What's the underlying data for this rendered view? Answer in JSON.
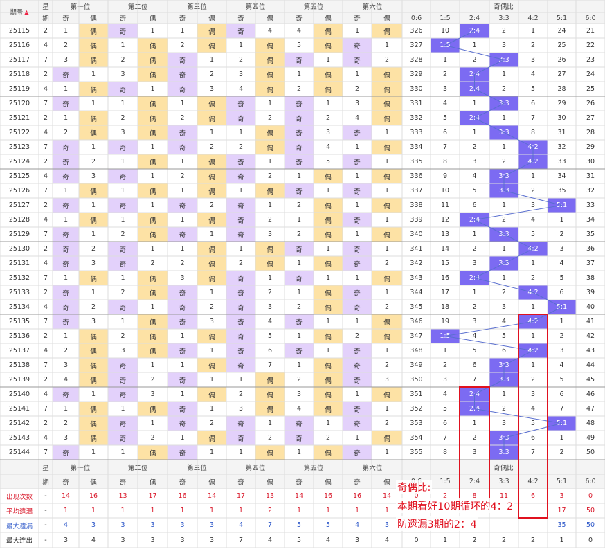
{
  "header": {
    "period": "期号",
    "weekday_top": "星",
    "weekday_bottom": "期",
    "positions": [
      "第一位",
      "第二位",
      "第三位",
      "第四位",
      "第五位",
      "第六位"
    ],
    "odd": "奇",
    "even": "偶",
    "ratio_title": "奇偶比",
    "ratios": [
      "0:6",
      "1:5",
      "2:4",
      "3:3",
      "4:2",
      "5:1",
      "6:0"
    ],
    "footer_dash": "-"
  },
  "rows": [
    {
      "p": "25115",
      "w": "2",
      "pos": [
        [
          "1",
          "偶"
        ],
        [
          "奇",
          "1"
        ],
        [
          "1",
          "偶"
        ],
        [
          "奇",
          "4"
        ],
        [
          "4",
          "偶"
        ],
        [
          "1",
          "偶"
        ]
      ],
      "r": [
        "326",
        "10",
        "2:4",
        "2",
        "1",
        "24",
        "21"
      ]
    },
    {
      "p": "25116",
      "w": "4",
      "pos": [
        [
          "2",
          "偶"
        ],
        [
          "1",
          "偶"
        ],
        [
          "2",
          "偶"
        ],
        [
          "1",
          "偶"
        ],
        [
          "5",
          "偶"
        ],
        [
          "奇",
          "1"
        ]
      ],
      "r": [
        "327",
        "1:5",
        "1",
        "3",
        "2",
        "25",
        "22"
      ]
    },
    {
      "p": "25117",
      "w": "7",
      "pos": [
        [
          "3",
          "偶"
        ],
        [
          "2",
          "偶"
        ],
        [
          "奇",
          "1"
        ],
        [
          "2",
          "偶"
        ],
        [
          "奇",
          "1"
        ],
        [
          "奇",
          "2"
        ]
      ],
      "r": [
        "328",
        "1",
        "2",
        "3:3",
        "3",
        "26",
        "23"
      ]
    },
    {
      "p": "25118",
      "w": "2",
      "pos": [
        [
          "奇",
          "1"
        ],
        [
          "3",
          "偶"
        ],
        [
          "奇",
          "2"
        ],
        [
          "3",
          "偶"
        ],
        [
          "1",
          "偶"
        ],
        [
          "1",
          "偶"
        ]
      ],
      "r": [
        "329",
        "2",
        "2:4",
        "1",
        "4",
        "27",
        "24"
      ]
    },
    {
      "p": "25119",
      "w": "4",
      "pos": [
        [
          "1",
          "偶"
        ],
        [
          "奇",
          "1"
        ],
        [
          "奇",
          "3"
        ],
        [
          "4",
          "偶"
        ],
        [
          "2",
          "偶"
        ],
        [
          "2",
          "偶"
        ]
      ],
      "r": [
        "330",
        "3",
        "2:4",
        "2",
        "5",
        "28",
        "25"
      ]
    },
    {
      "p": "25120",
      "w": "7",
      "pos": [
        [
          "奇",
          "1"
        ],
        [
          "1",
          "偶"
        ],
        [
          "1",
          "偶"
        ],
        [
          "奇",
          "1"
        ],
        [
          "奇",
          "1"
        ],
        [
          "3",
          "偶"
        ]
      ],
      "r": [
        "331",
        "4",
        "1",
        "3:3",
        "6",
        "29",
        "26"
      ]
    },
    {
      "p": "25121",
      "w": "2",
      "pos": [
        [
          "1",
          "偶"
        ],
        [
          "2",
          "偶"
        ],
        [
          "2",
          "偶"
        ],
        [
          "奇",
          "2"
        ],
        [
          "奇",
          "2"
        ],
        [
          "4",
          "偶"
        ]
      ],
      "r": [
        "332",
        "5",
        "2:4",
        "1",
        "7",
        "30",
        "27"
      ]
    },
    {
      "p": "25122",
      "w": "4",
      "pos": [
        [
          "2",
          "偶"
        ],
        [
          "3",
          "偶"
        ],
        [
          "奇",
          "1"
        ],
        [
          "1",
          "偶"
        ],
        [
          "奇",
          "3"
        ],
        [
          "奇",
          "1"
        ]
      ],
      "r": [
        "333",
        "6",
        "1",
        "3:3",
        "8",
        "31",
        "28"
      ]
    },
    {
      "p": "25123",
      "w": "7",
      "pos": [
        [
          "奇",
          "1"
        ],
        [
          "奇",
          "1"
        ],
        [
          "奇",
          "2"
        ],
        [
          "2",
          "偶"
        ],
        [
          "奇",
          "4"
        ],
        [
          "1",
          "偶"
        ]
      ],
      "r": [
        "334",
        "7",
        "2",
        "1",
        "4:2",
        "32",
        "29"
      ]
    },
    {
      "p": "25124",
      "w": "2",
      "pos": [
        [
          "奇",
          "2"
        ],
        [
          "1",
          "偶"
        ],
        [
          "1",
          "偶"
        ],
        [
          "奇",
          "1"
        ],
        [
          "奇",
          "5"
        ],
        [
          "奇",
          "1"
        ]
      ],
      "r": [
        "335",
        "8",
        "3",
        "2",
        "4:2",
        "33",
        "30"
      ]
    },
    {
      "p": "25125",
      "w": "4",
      "pos": [
        [
          "奇",
          "3"
        ],
        [
          "奇",
          "1"
        ],
        [
          "2",
          "偶"
        ],
        [
          "奇",
          "2"
        ],
        [
          "1",
          "偶"
        ],
        [
          "1",
          "偶"
        ]
      ],
      "r": [
        "336",
        "9",
        "4",
        "3:3",
        "1",
        "34",
        "31"
      ]
    },
    {
      "p": "25126",
      "w": "7",
      "pos": [
        [
          "1",
          "偶"
        ],
        [
          "1",
          "偶"
        ],
        [
          "1",
          "偶"
        ],
        [
          "1",
          "偶"
        ],
        [
          "奇",
          "1"
        ],
        [
          "奇",
          "1"
        ]
      ],
      "r": [
        "337",
        "10",
        "5",
        "3:3",
        "2",
        "35",
        "32"
      ]
    },
    {
      "p": "25127",
      "w": "2",
      "pos": [
        [
          "奇",
          "1"
        ],
        [
          "奇",
          "1"
        ],
        [
          "奇",
          "2"
        ],
        [
          "奇",
          "1"
        ],
        [
          "2",
          "偶"
        ],
        [
          "1",
          "偶"
        ]
      ],
      "r": [
        "338",
        "11",
        "6",
        "1",
        "3",
        "5:1",
        "33"
      ]
    },
    {
      "p": "25128",
      "w": "4",
      "pos": [
        [
          "1",
          "偶"
        ],
        [
          "1",
          "偶"
        ],
        [
          "1",
          "偶"
        ],
        [
          "奇",
          "2"
        ],
        [
          "1",
          "偶"
        ],
        [
          "奇",
          "1"
        ]
      ],
      "r": [
        "339",
        "12",
        "2:4",
        "2",
        "4",
        "1",
        "34"
      ]
    },
    {
      "p": "25129",
      "w": "7",
      "pos": [
        [
          "奇",
          "1"
        ],
        [
          "2",
          "偶"
        ],
        [
          "奇",
          "1"
        ],
        [
          "奇",
          "3"
        ],
        [
          "2",
          "偶"
        ],
        [
          "1",
          "偶"
        ]
      ],
      "r": [
        "340",
        "13",
        "1",
        "3:3",
        "5",
        "2",
        "35"
      ]
    },
    {
      "p": "25130",
      "w": "2",
      "pos": [
        [
          "奇",
          "2"
        ],
        [
          "奇",
          "1"
        ],
        [
          "1",
          "偶"
        ],
        [
          "1",
          "偶"
        ],
        [
          "奇",
          "1"
        ],
        [
          "奇",
          "1"
        ]
      ],
      "r": [
        "341",
        "14",
        "2",
        "1",
        "4:2",
        "3",
        "36"
      ]
    },
    {
      "p": "25131",
      "w": "4",
      "pos": [
        [
          "奇",
          "3"
        ],
        [
          "奇",
          "2"
        ],
        [
          "2",
          "偶"
        ],
        [
          "2",
          "偶"
        ],
        [
          "1",
          "偶"
        ],
        [
          "奇",
          "2"
        ]
      ],
      "r": [
        "342",
        "15",
        "3",
        "3:3",
        "1",
        "4",
        "37"
      ]
    },
    {
      "p": "25132",
      "w": "7",
      "pos": [
        [
          "1",
          "偶"
        ],
        [
          "1",
          "偶"
        ],
        [
          "3",
          "偶"
        ],
        [
          "奇",
          "1"
        ],
        [
          "奇",
          "1"
        ],
        [
          "1",
          "偶"
        ]
      ],
      "r": [
        "343",
        "16",
        "2:4",
        "1",
        "2",
        "5",
        "38"
      ]
    },
    {
      "p": "25133",
      "w": "2",
      "pos": [
        [
          "奇",
          "1"
        ],
        [
          "2",
          "偶"
        ],
        [
          "奇",
          "1"
        ],
        [
          "奇",
          "2"
        ],
        [
          "1",
          "偶"
        ],
        [
          "奇",
          "1"
        ]
      ],
      "r": [
        "344",
        "17",
        "1",
        "2",
        "4:2",
        "6",
        "39"
      ]
    },
    {
      "p": "25134",
      "w": "4",
      "pos": [
        [
          "奇",
          "2"
        ],
        [
          "奇",
          "1"
        ],
        [
          "奇",
          "2"
        ],
        [
          "奇",
          "3"
        ],
        [
          "2",
          "偶"
        ],
        [
          "奇",
          "2"
        ]
      ],
      "r": [
        "345",
        "18",
        "2",
        "3",
        "1",
        "5:1",
        "40"
      ]
    },
    {
      "p": "25135",
      "w": "7",
      "pos": [
        [
          "奇",
          "3"
        ],
        [
          "1",
          "偶"
        ],
        [
          "奇",
          "3"
        ],
        [
          "奇",
          "4"
        ],
        [
          "奇",
          "1"
        ],
        [
          "1",
          "偶"
        ]
      ],
      "r": [
        "346",
        "19",
        "3",
        "4",
        "4:2",
        "1",
        "41"
      ]
    },
    {
      "p": "25136",
      "w": "2",
      "pos": [
        [
          "1",
          "偶"
        ],
        [
          "2",
          "偶"
        ],
        [
          "1",
          "偶"
        ],
        [
          "奇",
          "5"
        ],
        [
          "1",
          "偶"
        ],
        [
          "2",
          "偶"
        ]
      ],
      "r": [
        "347",
        "1:5",
        "4",
        "5",
        "1",
        "2",
        "42"
      ]
    },
    {
      "p": "25137",
      "w": "4",
      "pos": [
        [
          "2",
          "偶"
        ],
        [
          "3",
          "偶"
        ],
        [
          "奇",
          "1"
        ],
        [
          "奇",
          "6"
        ],
        [
          "奇",
          "1"
        ],
        [
          "奇",
          "1"
        ]
      ],
      "r": [
        "348",
        "1",
        "5",
        "6",
        "4:2",
        "3",
        "43"
      ]
    },
    {
      "p": "25138",
      "w": "7",
      "pos": [
        [
          "3",
          "偶"
        ],
        [
          "奇",
          "1"
        ],
        [
          "1",
          "偶"
        ],
        [
          "奇",
          "7"
        ],
        [
          "1",
          "偶"
        ],
        [
          "奇",
          "2"
        ]
      ],
      "r": [
        "349",
        "2",
        "6",
        "3:3",
        "1",
        "4",
        "44"
      ]
    },
    {
      "p": "25139",
      "w": "2",
      "pos": [
        [
          "4",
          "偶"
        ],
        [
          "奇",
          "2"
        ],
        [
          "奇",
          "1"
        ],
        [
          "1",
          "偶"
        ],
        [
          "2",
          "偶"
        ],
        [
          "奇",
          "3"
        ]
      ],
      "r": [
        "350",
        "3",
        "7",
        "3:3",
        "2",
        "5",
        "45"
      ]
    },
    {
      "p": "25140",
      "w": "4",
      "pos": [
        [
          "奇",
          "1"
        ],
        [
          "奇",
          "3"
        ],
        [
          "1",
          "偶"
        ],
        [
          "2",
          "偶"
        ],
        [
          "3",
          "偶"
        ],
        [
          "1",
          "偶"
        ]
      ],
      "r": [
        "351",
        "4",
        "2:4",
        "1",
        "3",
        "6",
        "46"
      ]
    },
    {
      "p": "25141",
      "w": "7",
      "pos": [
        [
          "1",
          "偶"
        ],
        [
          "1",
          "偶"
        ],
        [
          "奇",
          "1"
        ],
        [
          "3",
          "偶"
        ],
        [
          "4",
          "偶"
        ],
        [
          "奇",
          "1"
        ]
      ],
      "r": [
        "352",
        "5",
        "2:4",
        "2",
        "4",
        "7",
        "47"
      ]
    },
    {
      "p": "25142",
      "w": "2",
      "pos": [
        [
          "2",
          "偶"
        ],
        [
          "奇",
          "1"
        ],
        [
          "奇",
          "2"
        ],
        [
          "奇",
          "1"
        ],
        [
          "奇",
          "1"
        ],
        [
          "奇",
          "2"
        ]
      ],
      "r": [
        "353",
        "6",
        "1",
        "3",
        "5",
        "5:1",
        "48"
      ]
    },
    {
      "p": "25143",
      "w": "4",
      "pos": [
        [
          "3",
          "偶"
        ],
        [
          "奇",
          "2"
        ],
        [
          "1",
          "偶"
        ],
        [
          "奇",
          "2"
        ],
        [
          "奇",
          "2"
        ],
        [
          "1",
          "偶"
        ]
      ],
      "r": [
        "354",
        "7",
        "2",
        "3:3",
        "6",
        "1",
        "49"
      ]
    },
    {
      "p": "25144",
      "w": "7",
      "pos": [
        [
          "奇",
          "1"
        ],
        [
          "1",
          "偶"
        ],
        [
          "奇",
          "1"
        ],
        [
          "1",
          "偶"
        ],
        [
          "1",
          "偶"
        ],
        [
          "奇",
          "1"
        ]
      ],
      "r": [
        "355",
        "8",
        "3",
        "3:3",
        "7",
        "2",
        "50"
      ]
    }
  ],
  "stats": [
    {
      "label": "出现次数",
      "color": "#d9182a",
      "w": "-",
      "vals": [
        "14",
        "16",
        "13",
        "17",
        "16",
        "14",
        "17",
        "13",
        "14",
        "16",
        "16",
        "14",
        "0",
        "2",
        "8",
        "11",
        "6",
        "3",
        "0"
      ]
    },
    {
      "label": "平均遗漏",
      "color": "#d9182a",
      "w": "-",
      "vals": [
        "1",
        "1",
        "1",
        "1",
        "1",
        "1",
        "1",
        "2",
        "1",
        "1",
        "1",
        "1",
        "",
        "",
        "",
        "",
        "",
        "17",
        "50"
      ]
    },
    {
      "label": "最大遗漏",
      "color": "#2a55c8",
      "w": "-",
      "vals": [
        "4",
        "3",
        "3",
        "3",
        "3",
        "3",
        "4",
        "7",
        "5",
        "5",
        "4",
        "3",
        "",
        "",
        "",
        "",
        "",
        "35",
        "50"
      ]
    },
    {
      "label": "最大连出",
      "color": "#333333",
      "w": "-",
      "vals": [
        "3",
        "4",
        "3",
        "3",
        "3",
        "3",
        "7",
        "4",
        "5",
        "4",
        "3",
        "4",
        "0",
        "1",
        "2",
        "2",
        "2",
        "1",
        "0"
      ]
    }
  ],
  "note": {
    "line1": "奇偶比:",
    "line2": "本期看好10期循环的4：2",
    "line3": "防遗漏3期的2：4"
  },
  "colors": {
    "odd_bg": "#e3d1fb",
    "even_bg": "#fde2a5",
    "hit_bg": "#7c6bf2",
    "grid": "#dddddd",
    "annotation": "#e0111f"
  }
}
